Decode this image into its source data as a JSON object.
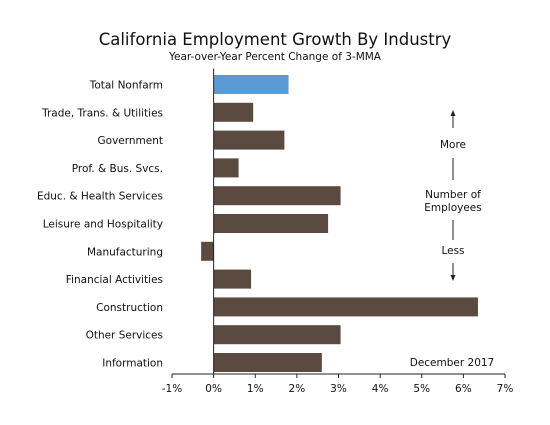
{
  "chart_data": {
    "type": "bar",
    "orientation": "horizontal",
    "title": "California Employment Growth By Industry",
    "subtitle": "Year-over-Year Percent Change of 3-MMA",
    "categories": [
      "Total Nonfarm",
      "Trade, Trans. & Utilities",
      "Government",
      "Prof. & Bus. Svcs.",
      "Educ. & Health Services",
      "Leisure and Hospitality",
      "Manufacturing",
      "Financial Activities",
      "Construction",
      "Other Services",
      "Information"
    ],
    "values": [
      1.8,
      0.95,
      1.7,
      0.6,
      3.05,
      2.75,
      -0.3,
      0.9,
      6.35,
      3.05,
      2.6
    ],
    "highlight_category": "Total Nonfarm",
    "xlim": [
      -1,
      7
    ],
    "ticks": [
      -1,
      0,
      1,
      2,
      3,
      4,
      5,
      6,
      7
    ],
    "tick_labels": [
      "-1%",
      "0%",
      "1%",
      "2%",
      "3%",
      "4%",
      "5%",
      "6%",
      "7%"
    ],
    "grid": false,
    "annotations": {
      "more": "More",
      "number_of": "Number of",
      "employees": "Employees",
      "less": "Less",
      "date": "December 2017"
    },
    "colors": {
      "bar": "#5b4a3f",
      "highlight": "#5b9bd5",
      "axis": "#222222"
    }
  }
}
